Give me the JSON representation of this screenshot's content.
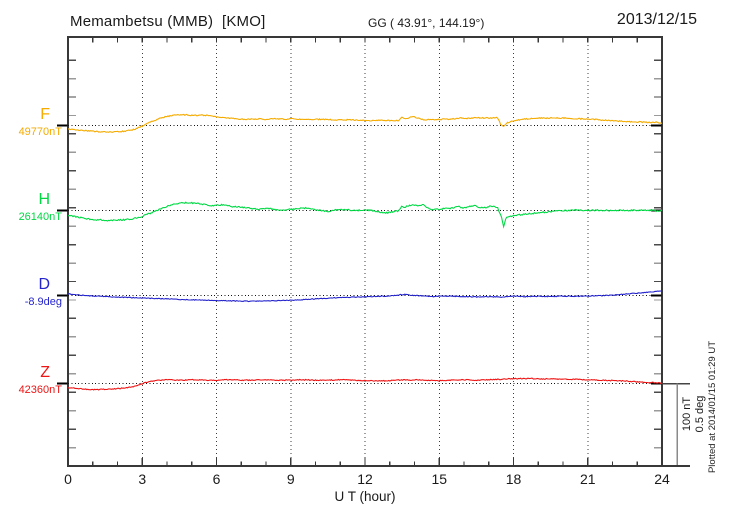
{
  "header": {
    "title": "Memambetsu (MMB)  [KMO]",
    "coords": "GG ( 43.91°, 144.19°)",
    "date": "2013/12/15"
  },
  "axis": {
    "xlabel": "U T (hour)"
  },
  "side": {
    "scale_nt": "100 nT",
    "scale_deg": "0.5 deg",
    "plotted_at": "Plotted at 2014/01/15 01:29 UT"
  },
  "chart_data": {
    "type": "line",
    "title": "Memambetsu (MMB)  [KMO]",
    "subtitle": "GG ( 43.91°, 144.19°)",
    "date": "2013/12/15",
    "xlabel": "U T (hour)",
    "x_range": [
      0,
      24
    ],
    "x_ticks": [
      0,
      3,
      6,
      9,
      12,
      15,
      18,
      21,
      24
    ],
    "grid": "dotted vertical gridlines every 3 hours; dotted horizontal baseline per trace",
    "legend_position": "left",
    "scale_bar": {
      "nT": 100,
      "deg": 0.5
    },
    "series": [
      {
        "name": "F",
        "unit": "nT",
        "base_value": 49770,
        "base_label": "49770nT",
        "color": "#f5ab00",
        "offsets": [
          [
            0,
            -4
          ],
          [
            0.4,
            -5.5
          ],
          [
            0.8,
            -6.5
          ],
          [
            1.2,
            -7.5
          ],
          [
            1.6,
            -8
          ],
          [
            2.0,
            -7.5
          ],
          [
            2.4,
            -6.5
          ],
          [
            2.7,
            -4.5
          ],
          [
            3.0,
            -0.5
          ],
          [
            3.3,
            4
          ],
          [
            3.7,
            8.5
          ],
          [
            4.0,
            11
          ],
          [
            4.3,
            12.5
          ],
          [
            4.6,
            13
          ],
          [
            4.9,
            12.5
          ],
          [
            5.2,
            12
          ],
          [
            5.5,
            12.5
          ],
          [
            5.8,
            11.5
          ],
          [
            6.1,
            10
          ],
          [
            6.4,
            9
          ],
          [
            6.8,
            8
          ],
          [
            7.2,
            7.5
          ],
          [
            7.6,
            8
          ],
          [
            8.0,
            7.5
          ],
          [
            8.3,
            8.5
          ],
          [
            8.7,
            7.5
          ],
          [
            9.0,
            8
          ],
          [
            9.4,
            7.5
          ],
          [
            9.8,
            7
          ],
          [
            10.2,
            7.5
          ],
          [
            10.6,
            7
          ],
          [
            11.0,
            6.5
          ],
          [
            11.4,
            7
          ],
          [
            11.8,
            6.5
          ],
          [
            12.2,
            6
          ],
          [
            12.6,
            6.5
          ],
          [
            13.0,
            6
          ],
          [
            13.35,
            6
          ],
          [
            13.5,
            10
          ],
          [
            13.65,
            8
          ],
          [
            13.8,
            9.5
          ],
          [
            14.0,
            10.5
          ],
          [
            14.2,
            8
          ],
          [
            14.4,
            7
          ],
          [
            14.8,
            7
          ],
          [
            15.2,
            7.5
          ],
          [
            15.6,
            8
          ],
          [
            15.9,
            9
          ],
          [
            16.2,
            8.5
          ],
          [
            16.5,
            9.5
          ],
          [
            16.8,
            9
          ],
          [
            17.1,
            9
          ],
          [
            17.35,
            9.5
          ],
          [
            17.5,
            0.5
          ],
          [
            17.6,
            -1
          ],
          [
            17.75,
            3.5
          ],
          [
            18.0,
            5.5
          ],
          [
            18.4,
            7.5
          ],
          [
            18.8,
            8.5
          ],
          [
            19.2,
            9
          ],
          [
            19.6,
            9
          ],
          [
            20.0,
            9
          ],
          [
            20.4,
            8.5
          ],
          [
            20.8,
            8
          ],
          [
            21.2,
            7.5
          ],
          [
            21.6,
            6.5
          ],
          [
            22.0,
            6
          ],
          [
            22.4,
            5
          ],
          [
            22.8,
            4.5
          ],
          [
            23.2,
            4
          ],
          [
            23.5,
            3.5
          ],
          [
            23.8,
            4
          ],
          [
            24,
            2.5
          ]
        ]
      },
      {
        "name": "H",
        "unit": "nT",
        "base_value": 26140,
        "base_label": "26140nT",
        "color": "#00d844",
        "offsets": [
          [
            0,
            -6
          ],
          [
            0.3,
            -7.5
          ],
          [
            0.7,
            -9.5
          ],
          [
            1.0,
            -11
          ],
          [
            1.4,
            -11.5
          ],
          [
            1.7,
            -12
          ],
          [
            2.0,
            -11.5
          ],
          [
            2.3,
            -11
          ],
          [
            2.6,
            -10
          ],
          [
            2.9,
            -8
          ],
          [
            3.1,
            -5.5
          ],
          [
            3.4,
            -2.5
          ],
          [
            3.7,
            1.5
          ],
          [
            4.0,
            5
          ],
          [
            4.3,
            7.5
          ],
          [
            4.6,
            9
          ],
          [
            4.9,
            9.5
          ],
          [
            5.2,
            8.5
          ],
          [
            5.5,
            7.5
          ],
          [
            5.8,
            6
          ],
          [
            6.0,
            6.5
          ],
          [
            6.3,
            7
          ],
          [
            6.6,
            5
          ],
          [
            7.0,
            4
          ],
          [
            7.4,
            2.5
          ],
          [
            7.8,
            1.5
          ],
          [
            8.1,
            2.5
          ],
          [
            8.4,
            1
          ],
          [
            8.7,
            0.5
          ],
          [
            9.0,
            1.5
          ],
          [
            9.3,
            2.5
          ],
          [
            9.6,
            3
          ],
          [
            9.9,
            1.5
          ],
          [
            10.2,
            0
          ],
          [
            10.5,
            -1
          ],
          [
            10.8,
            0.5
          ],
          [
            11.1,
            1.5
          ],
          [
            11.4,
            0.5
          ],
          [
            11.7,
            0
          ],
          [
            12.0,
            1
          ],
          [
            12.3,
            0
          ],
          [
            12.6,
            -2
          ],
          [
            12.85,
            -3
          ],
          [
            13.1,
            -1.5
          ],
          [
            13.35,
            -0.5
          ],
          [
            13.5,
            5.5
          ],
          [
            13.6,
            3.5
          ],
          [
            13.75,
            6
          ],
          [
            13.95,
            7
          ],
          [
            14.15,
            6
          ],
          [
            14.35,
            7
          ],
          [
            14.5,
            3
          ],
          [
            14.7,
            1
          ],
          [
            14.9,
            1.5
          ],
          [
            15.1,
            2
          ],
          [
            15.4,
            2.5
          ],
          [
            15.6,
            3.5
          ],
          [
            15.8,
            4.5
          ],
          [
            16.0,
            3
          ],
          [
            16.2,
            5
          ],
          [
            16.4,
            6
          ],
          [
            16.6,
            4
          ],
          [
            16.8,
            3
          ],
          [
            17.0,
            5
          ],
          [
            17.2,
            5.5
          ],
          [
            17.35,
            3.5
          ],
          [
            17.5,
            -6
          ],
          [
            17.6,
            -20
          ],
          [
            17.7,
            -9
          ],
          [
            17.85,
            -7
          ],
          [
            18.0,
            -6
          ],
          [
            18.3,
            -5
          ],
          [
            18.6,
            -4
          ],
          [
            18.9,
            -3
          ],
          [
            19.2,
            -2
          ],
          [
            19.5,
            -1.5
          ],
          [
            19.8,
            -0.5
          ],
          [
            20.2,
            0
          ],
          [
            20.6,
            0.5
          ],
          [
            21.0,
            0
          ],
          [
            21.4,
            0.5
          ],
          [
            21.8,
            0
          ],
          [
            22.2,
            0.5
          ],
          [
            22.6,
            0
          ],
          [
            23.0,
            0.5
          ],
          [
            23.3,
            0
          ],
          [
            23.6,
            0.5
          ],
          [
            23.8,
            -1
          ],
          [
            24,
            0.5
          ]
        ]
      },
      {
        "name": "D",
        "unit": "deg",
        "base_value": -8.9,
        "base_label": "-8.9deg",
        "color": "#2424cc",
        "offsets": [
          [
            0,
            0.01
          ],
          [
            0.5,
            0.002
          ],
          [
            1.0,
            -0.003
          ],
          [
            1.5,
            -0.006
          ],
          [
            2.0,
            -0.01
          ],
          [
            2.5,
            -0.012
          ],
          [
            3.0,
            -0.015
          ],
          [
            3.5,
            -0.018
          ],
          [
            4.0,
            -0.02
          ],
          [
            4.5,
            -0.024
          ],
          [
            5.0,
            -0.026
          ],
          [
            5.5,
            -0.028
          ],
          [
            6.0,
            -0.03
          ],
          [
            6.5,
            -0.032
          ],
          [
            7.0,
            -0.034
          ],
          [
            7.5,
            -0.034
          ],
          [
            8.0,
            -0.032
          ],
          [
            8.5,
            -0.031
          ],
          [
            9.0,
            -0.029
          ],
          [
            9.5,
            -0.025
          ],
          [
            10.0,
            -0.02
          ],
          [
            10.5,
            -0.016
          ],
          [
            11.0,
            -0.012
          ],
          [
            11.5,
            -0.01
          ],
          [
            12.0,
            -0.008
          ],
          [
            12.5,
            -0.005
          ],
          [
            13.0,
            -0.003
          ],
          [
            13.4,
            0.004
          ],
          [
            13.6,
            0.007
          ],
          [
            13.8,
            0.002
          ],
          [
            14.0,
            0
          ],
          [
            14.4,
            -0.002
          ],
          [
            14.7,
            -0.007
          ],
          [
            15.0,
            -0.003
          ],
          [
            15.5,
            -0.004
          ],
          [
            16.0,
            -0.007
          ],
          [
            16.5,
            -0.009
          ],
          [
            17.0,
            -0.007
          ],
          [
            17.5,
            -0.009
          ],
          [
            18.0,
            -0.004
          ],
          [
            18.5,
            -0.007
          ],
          [
            19.0,
            -0.005
          ],
          [
            19.5,
            -0.006
          ],
          [
            20.0,
            -0.004
          ],
          [
            20.5,
            -0.005
          ],
          [
            21.0,
            -0.003
          ],
          [
            21.5,
            -0.001
          ],
          [
            22.0,
            0.002
          ],
          [
            22.5,
            0.008
          ],
          [
            23.0,
            0.014
          ],
          [
            23.5,
            0.021
          ],
          [
            24,
            0.028
          ]
        ]
      },
      {
        "name": "Z",
        "unit": "nT",
        "base_value": 42360,
        "base_label": "42360nT",
        "color": "#ee1515",
        "offsets": [
          [
            0,
            -5
          ],
          [
            0.4,
            -6
          ],
          [
            0.8,
            -7
          ],
          [
            1.1,
            -7.5
          ],
          [
            1.5,
            -7
          ],
          [
            1.9,
            -6.5
          ],
          [
            2.3,
            -5.5
          ],
          [
            2.6,
            -4
          ],
          [
            2.9,
            -1.5
          ],
          [
            3.1,
            1
          ],
          [
            3.4,
            3
          ],
          [
            3.7,
            4
          ],
          [
            4.0,
            4.5
          ],
          [
            4.5,
            4
          ],
          [
            5.0,
            4.5
          ],
          [
            5.5,
            4
          ],
          [
            6.0,
            4
          ],
          [
            6.5,
            4.5
          ],
          [
            7.0,
            4
          ],
          [
            7.5,
            4
          ],
          [
            8.0,
            4.5
          ],
          [
            8.5,
            4
          ],
          [
            9.0,
            4
          ],
          [
            9.5,
            4.5
          ],
          [
            10.0,
            4
          ],
          [
            10.5,
            4
          ],
          [
            11.0,
            4.5
          ],
          [
            11.5,
            4
          ],
          [
            12.0,
            3.5
          ],
          [
            12.5,
            3
          ],
          [
            13.0,
            3.5
          ],
          [
            13.3,
            4
          ],
          [
            13.6,
            4.5
          ],
          [
            13.9,
            4
          ],
          [
            14.2,
            4.5
          ],
          [
            14.5,
            4
          ],
          [
            15.0,
            3.5
          ],
          [
            15.5,
            4
          ],
          [
            16.0,
            4.5
          ],
          [
            16.5,
            4
          ],
          [
            17.0,
            4.5
          ],
          [
            17.4,
            5
          ],
          [
            17.8,
            5.5
          ],
          [
            18.2,
            6
          ],
          [
            18.6,
            6
          ],
          [
            19.0,
            5.5
          ],
          [
            19.5,
            5.5
          ],
          [
            20.0,
            5
          ],
          [
            20.5,
            5
          ],
          [
            21.0,
            4.5
          ],
          [
            21.5,
            4
          ],
          [
            22.0,
            3.5
          ],
          [
            22.5,
            3
          ],
          [
            23.0,
            2
          ],
          [
            23.4,
            1.5
          ],
          [
            23.7,
            1
          ],
          [
            24,
            0.3
          ]
        ]
      }
    ]
  }
}
